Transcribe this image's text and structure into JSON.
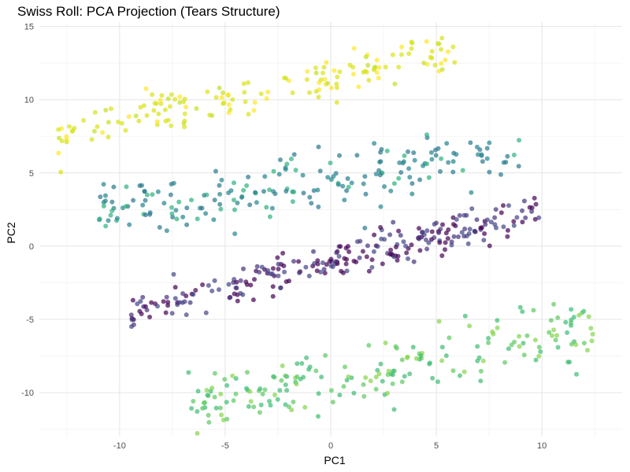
{
  "chart_data": {
    "type": "scatter",
    "title": "Swiss Roll: PCA Projection (Tears Structure)",
    "xlabel": "PC1",
    "ylabel": "PC2",
    "xlim": [
      -13.8,
      13.8
    ],
    "ylim": [
      -13.0,
      15.3
    ],
    "x_ticks": [
      -10,
      -5,
      0,
      5,
      10
    ],
    "y_ticks": [
      -10,
      -5,
      0,
      5,
      10,
      15
    ],
    "grid": true,
    "legend": "none",
    "point_opacity": 0.7,
    "colormap": "viridis",
    "palette": {
      "purple": "#440154",
      "indigo": "#414487",
      "teal": "#2a788e",
      "green": "#22a884",
      "lightgreen": "#7ad151",
      "yellow": "#fde725"
    },
    "clusters": [
      {
        "name": "yellow-arc",
        "color": "#d8e219",
        "x_range": [
          -13.0,
          6.0
        ],
        "y_center_at_min": 7.5,
        "y_center_at_max": 13.5,
        "spread": 1.2,
        "count": 160
      },
      {
        "name": "teal-band",
        "color": "#2a9b8e",
        "x_range": [
          -11.0,
          9.0
        ],
        "y_center_at_min": 2.0,
        "y_center_at_max": 6.5,
        "spread": 1.8,
        "count": 200
      },
      {
        "name": "purple-band",
        "color": "#46337e",
        "x_range": [
          -9.5,
          10.0
        ],
        "y_center_at_min": -4.5,
        "y_center_at_max": 2.5,
        "spread": 1.0,
        "count": 260
      },
      {
        "name": "green-band",
        "color": "#3fbc73",
        "x_range": [
          -7.0,
          12.5
        ],
        "y_center_at_min": -11.0,
        "y_center_at_max": -5.5,
        "spread": 1.8,
        "count": 200
      }
    ]
  }
}
